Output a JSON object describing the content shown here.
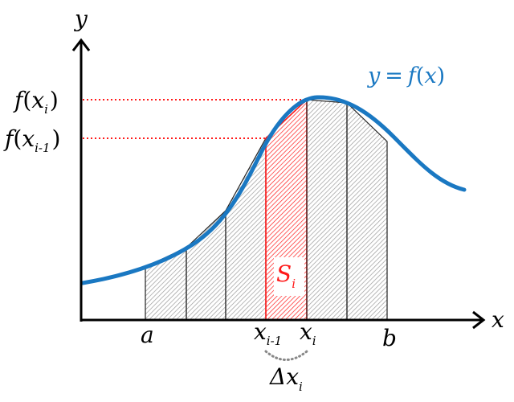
{
  "labels": {
    "y_axis": "y",
    "x_axis": "x",
    "curve_lhs": "y",
    "curve_eq": "=",
    "curve_rhs_f": "f",
    "curve_rhs_open": "(",
    "curve_rhs_x": "x",
    "curve_rhs_close": ")",
    "fxi_f": "f",
    "fxi_open": "(",
    "fxi_x": "x",
    "fxi_sub": "i",
    "fxi_close": ")",
    "fxim1_f": "f",
    "fxim1_open": "(",
    "fxim1_x": "x",
    "fxim1_sub": "i-1",
    "fxim1_close": ")",
    "a": "a",
    "b": "b",
    "xim1_x": "x",
    "xim1_sub": "i-1",
    "xi_x": "x",
    "xi_sub": "i",
    "S": "S",
    "S_sub": "i",
    "dx_delta": "Δ",
    "dx_x": "x",
    "dx_sub": "i"
  },
  "colors": {
    "curve": "#1a78c2",
    "highlight": "#ff1a1a",
    "hatch": "#9a9a9a",
    "axis": "#000000",
    "dotted_brace": "#888888"
  }
}
